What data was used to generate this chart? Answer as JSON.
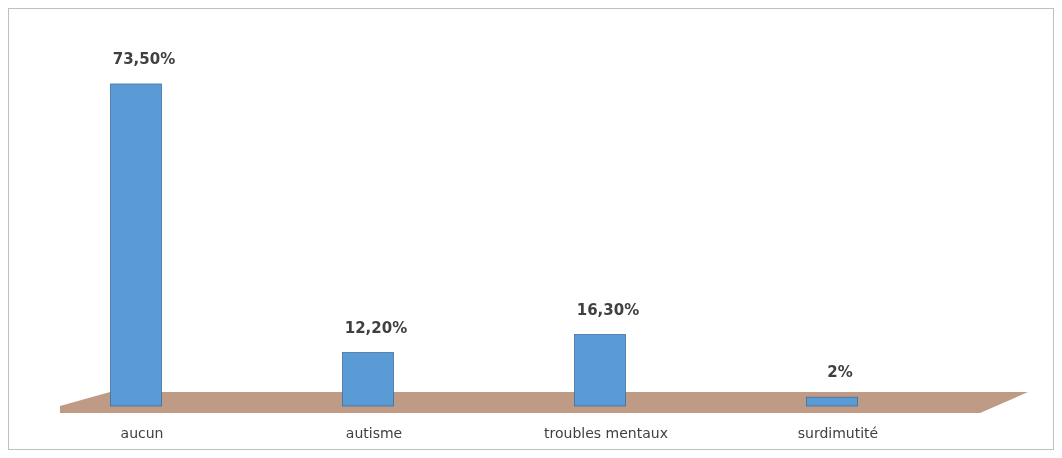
{
  "chart_data": {
    "type": "bar",
    "categories": [
      "aucun",
      "autisme",
      "troubles mentaux",
      "surdimutité"
    ],
    "values": [
      73.5,
      12.2,
      16.3,
      2
    ],
    "color": "#5b9bd5",
    "value_labels": [
      "73,50%",
      "12,20%",
      "16,30%",
      "2%"
    ]
  }
}
